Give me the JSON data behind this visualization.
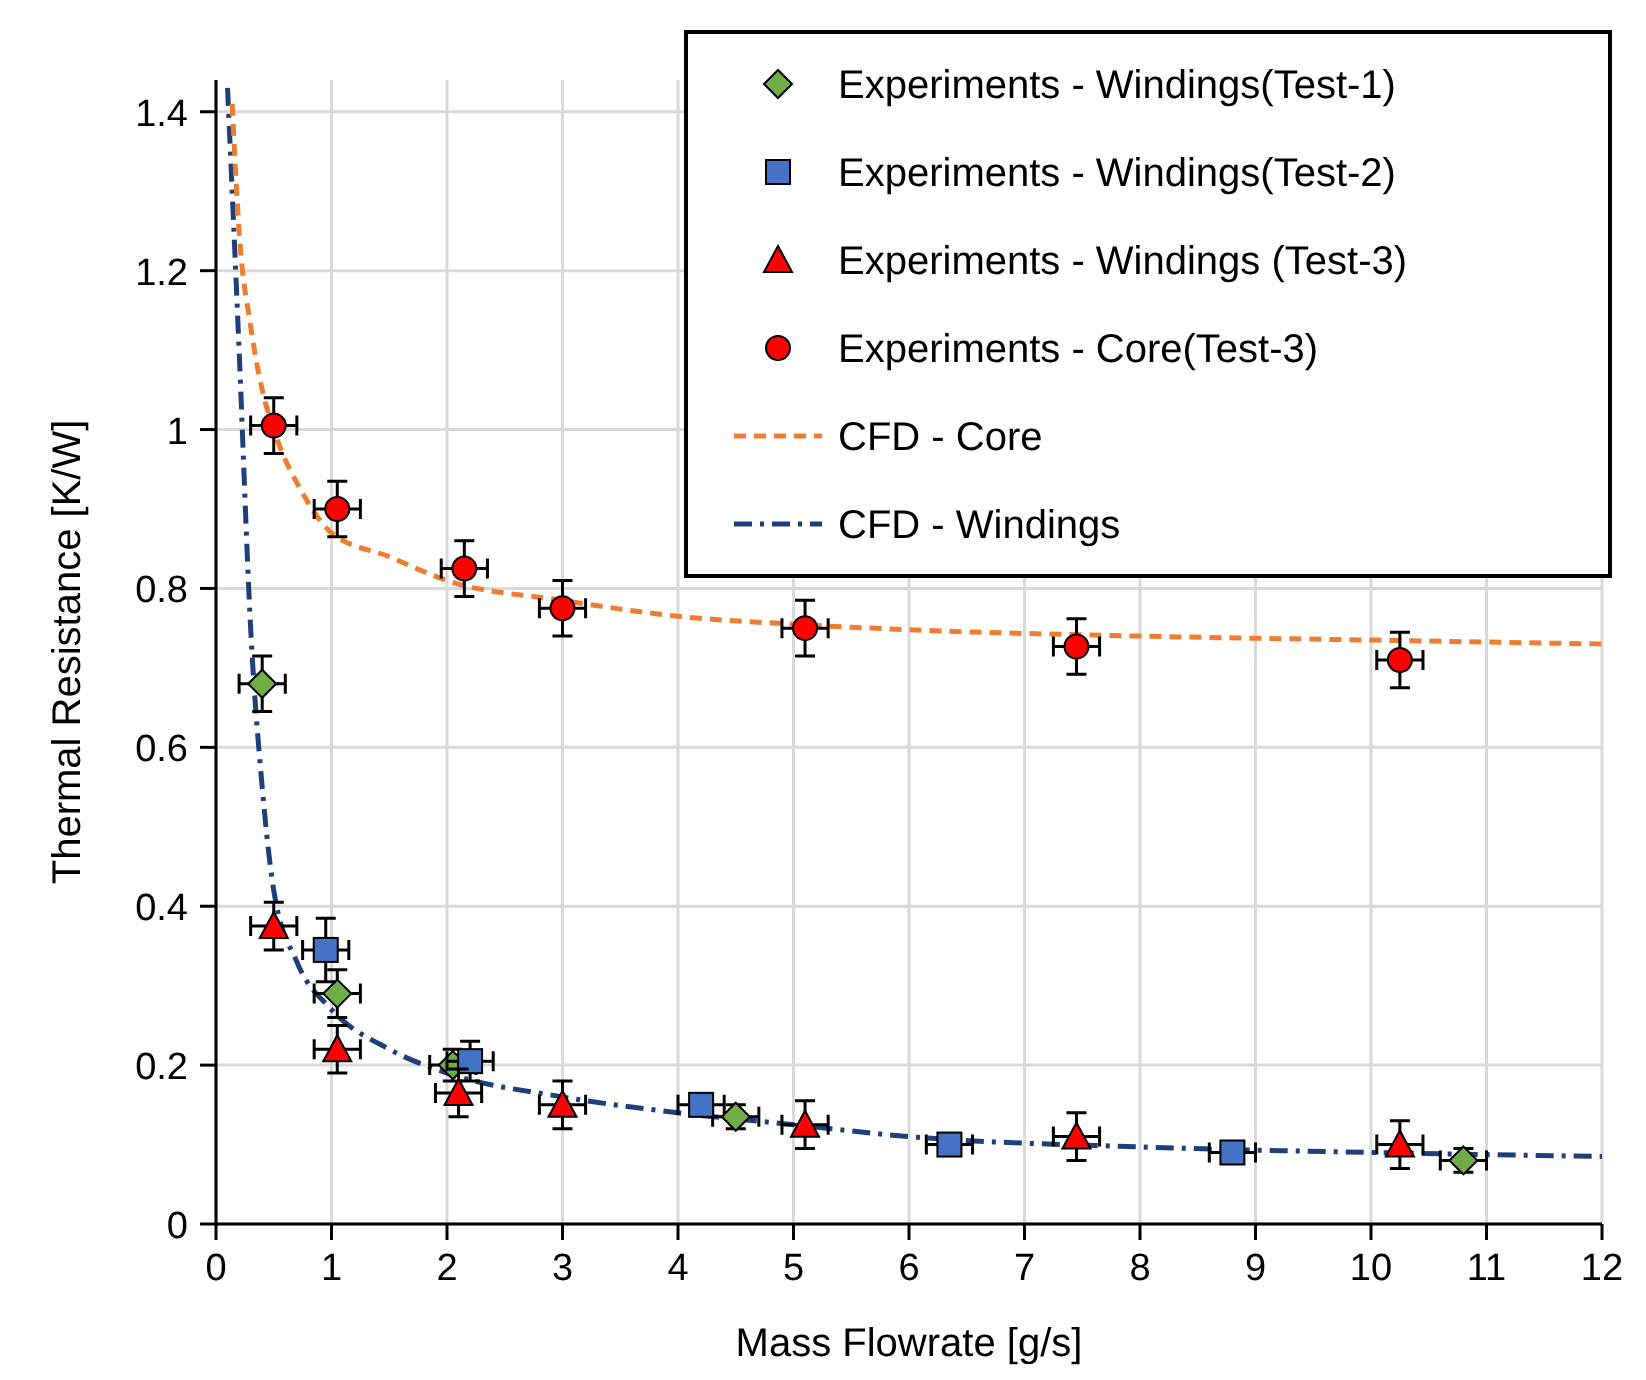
{
  "chart_data": {
    "type": "scatter",
    "xlabel": "Mass Flowrate [g/s]",
    "ylabel": "Thermal Resistance [K/W]",
    "xlim": [
      0,
      12
    ],
    "xticks": [
      0,
      1,
      2,
      3,
      4,
      5,
      6,
      7,
      8,
      9,
      10,
      11,
      12
    ],
    "ylim": [
      0,
      1.44
    ],
    "yticks": [
      0,
      0.2,
      0.4,
      0.6,
      0.8,
      1,
      1.2,
      1.4
    ],
    "grid": true,
    "legend": "top right",
    "series": [
      {
        "name": "Experiments - Windings(Test-1)",
        "marker": "diamond",
        "color": "#70ad47",
        "x": [
          0.4,
          1.05,
          2.05,
          4.5,
          10.8
        ],
        "values": [
          0.68,
          0.29,
          0.2,
          0.135,
          0.08
        ],
        "errors": [
          0.035,
          0.03,
          0.02,
          0.015,
          0.015
        ],
        "xerrors": [
          0.2,
          0.2,
          0.2,
          0.2,
          0.2
        ]
      },
      {
        "name": "Experiments - Windings(Test-2)",
        "marker": "square",
        "color": "#4472c4",
        "x": [
          0.95,
          2.2,
          4.2,
          6.35,
          8.8
        ],
        "values": [
          0.345,
          0.205,
          0.15,
          0.1,
          0.09
        ],
        "errors": [
          0.04,
          0.025,
          null,
          null,
          null
        ],
        "xerrors": [
          0.2,
          0.2,
          0.2,
          0.2,
          0.2
        ]
      },
      {
        "name": "Experiments - Windings (Test-3)",
        "marker": "triangle",
        "color": "#ff0000",
        "x": [
          0.5,
          1.05,
          2.1,
          3,
          5.1,
          7.45,
          10.25
        ],
        "values": [
          0.375,
          0.22,
          0.165,
          0.15,
          0.125,
          0.11,
          0.1
        ],
        "errors": [
          0.03,
          0.03,
          0.03,
          0.03,
          0.03,
          0.03,
          0.03
        ],
        "xerrors": [
          0.2,
          0.2,
          0.2,
          0.2,
          0.2,
          0.2,
          0.2
        ]
      },
      {
        "name": "Experiments - Core(Test-3)",
        "marker": "circle",
        "color": "#ff0000",
        "x": [
          0.5,
          1.05,
          2.15,
          3,
          5.1,
          7.45,
          10.25
        ],
        "values": [
          1.005,
          0.9,
          0.825,
          0.775,
          0.75,
          0.727,
          0.71
        ],
        "errors": [
          0.035,
          0.035,
          0.035,
          0.035,
          0.035,
          0.035,
          0.035
        ],
        "xerrors": [
          0.2,
          0.2,
          0.2,
          0.2,
          0.2,
          0.2,
          0.2
        ]
      },
      {
        "name": "CFD - Core",
        "type": "line",
        "line_style": "dashed",
        "color": "#ed7d31",
        "x": [
          0.14,
          0.2,
          0.3,
          0.4,
          0.5,
          0.75,
          1,
          1.5,
          2,
          3,
          4,
          5,
          6,
          8,
          10,
          12
        ],
        "values": [
          1.41,
          1.25,
          1.13,
          1.05,
          1.0,
          0.92,
          0.87,
          0.84,
          0.81,
          0.785,
          0.765,
          0.755,
          0.748,
          0.74,
          0.735,
          0.73
        ]
      },
      {
        "name": "CFD - Windings",
        "type": "line",
        "line_style": "dashdot",
        "color": "#1f3f7a",
        "x": [
          0.1,
          0.2,
          0.3,
          0.4,
          0.5,
          0.7,
          1,
          1.5,
          2,
          3,
          4,
          5,
          6,
          8,
          10,
          12
        ],
        "values": [
          1.43,
          1.1,
          0.75,
          0.55,
          0.42,
          0.33,
          0.27,
          0.22,
          0.19,
          0.16,
          0.14,
          0.125,
          0.11,
          0.097,
          0.09,
          0.085
        ]
      }
    ]
  }
}
